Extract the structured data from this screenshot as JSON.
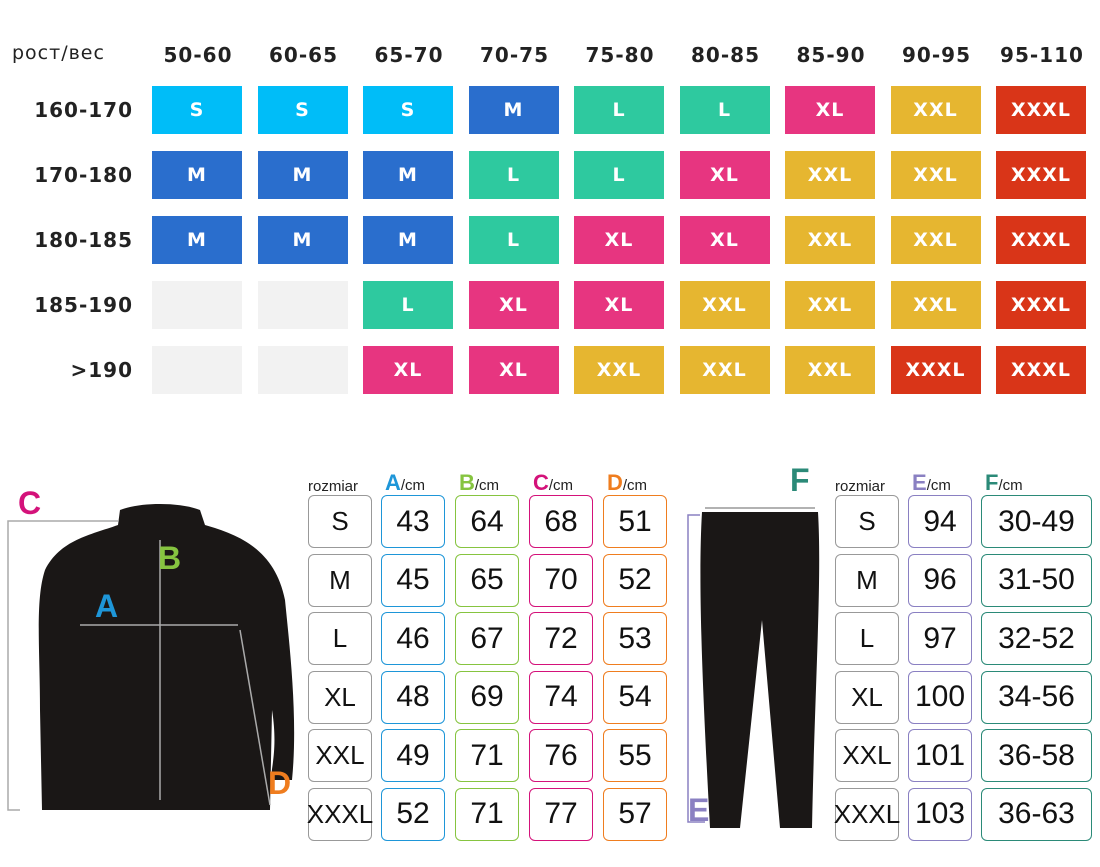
{
  "grid": {
    "corner": "рост/вес",
    "weights": [
      "50-60",
      "60-65",
      "65-70",
      "70-75",
      "75-80",
      "80-85",
      "85-90",
      "90-95",
      "95-110"
    ],
    "heights": [
      "160-170",
      "170-180",
      "180-185",
      "185-190",
      ">190"
    ],
    "rows": [
      [
        "S",
        "S",
        "S",
        "M",
        "L",
        "L",
        "XL",
        "XXL",
        "XXXL"
      ],
      [
        "M",
        "M",
        "M",
        "L",
        "L",
        "XL",
        "XXL",
        "XXL",
        "XXXL"
      ],
      [
        "M",
        "M",
        "M",
        "L",
        "XL",
        "XL",
        "XXL",
        "XXL",
        "XXXL"
      ],
      [
        "",
        "",
        "L",
        "XL",
        "XL",
        "XXL",
        "XXL",
        "XXL",
        "XXXL"
      ],
      [
        "",
        "",
        "XL",
        "XL",
        "XXL",
        "XXL",
        "XXL",
        "XXXL",
        "XXXL"
      ]
    ],
    "colors": {
      "S": "#00bdf8",
      "M": "#2a6ecd",
      "L": "#2ec99f",
      "XL": "#e73580",
      "XXL": "#e6b630",
      "XXXL": "#d93518",
      "": "#f2f2f2"
    }
  },
  "shirt": {
    "size_header": "rozmiar",
    "columns": [
      {
        "letter": "A",
        "unit": "/cm",
        "color": "#1e96d8"
      },
      {
        "letter": "B",
        "unit": "/cm",
        "color": "#86c440"
      },
      {
        "letter": "C",
        "unit": "/cm",
        "color": "#d4127a"
      },
      {
        "letter": "D",
        "unit": "/cm",
        "color": "#ef7d1f"
      }
    ],
    "rows": [
      [
        "S",
        "43",
        "64",
        "68",
        "51"
      ],
      [
        "M",
        "45",
        "65",
        "70",
        "52"
      ],
      [
        "L",
        "46",
        "67",
        "72",
        "53"
      ],
      [
        "XL",
        "48",
        "69",
        "74",
        "54"
      ],
      [
        "XXL",
        "49",
        "71",
        "76",
        "55"
      ],
      [
        "XXXL",
        "52",
        "71",
        "77",
        "57"
      ]
    ],
    "labels": {
      "A": "A",
      "B": "B",
      "C": "C",
      "D": "D"
    }
  },
  "pants": {
    "size_header": "rozmiar",
    "columns": [
      {
        "letter": "E",
        "unit": "/cm",
        "color": "#8a80c2"
      },
      {
        "letter": "F",
        "unit": "/cm",
        "color": "#2b8a78"
      }
    ],
    "rows": [
      [
        "S",
        "94",
        "30-49"
      ],
      [
        "M",
        "96",
        "31-50"
      ],
      [
        "L",
        "97",
        "32-52"
      ],
      [
        "XL",
        "100",
        "34-56"
      ],
      [
        "XXL",
        "101",
        "36-58"
      ],
      [
        "XXXL",
        "103",
        "36-63"
      ]
    ],
    "labels": {
      "E": "E",
      "F": "F"
    }
  }
}
